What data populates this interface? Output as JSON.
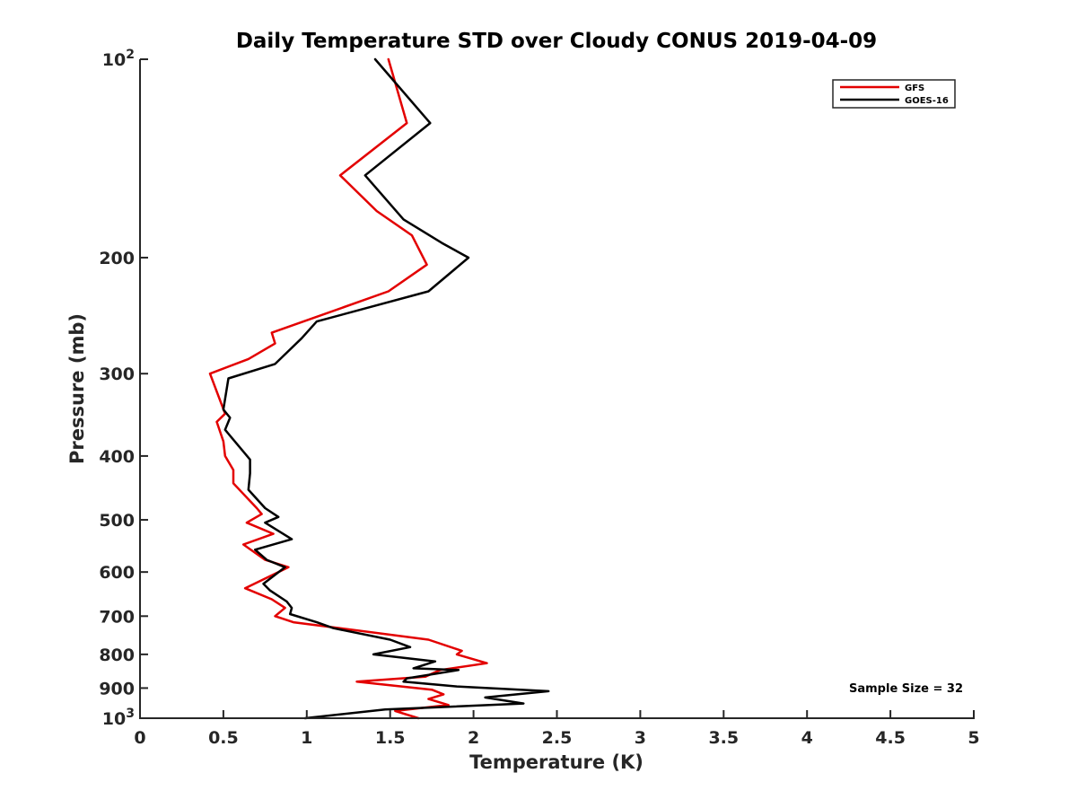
{
  "chart_data": {
    "type": "line",
    "title": "Daily Temperature STD over Cloudy CONUS 2019-04-09",
    "xlabel": "Temperature (K)",
    "ylabel": "Pressure (mb)",
    "xlim": [
      0,
      5
    ],
    "ylim": [
      100,
      1000
    ],
    "y_scale": "log",
    "y_reversed": true,
    "grid": false,
    "x_ticks": [
      0,
      0.5,
      1,
      1.5,
      2,
      2.5,
      3,
      3.5,
      4,
      4.5,
      5
    ],
    "x_tick_labels": [
      "0",
      "0.5",
      "1",
      "1.5",
      "2",
      "2.5",
      "3",
      "3.5",
      "4",
      "4.5",
      "5"
    ],
    "y_ticks": [
      200,
      300,
      400,
      500,
      600,
      700,
      800,
      900
    ],
    "y_tick_labels": [
      "200",
      "300",
      "400",
      "500",
      "600",
      "700",
      "800",
      "900"
    ],
    "y_power_ticks": [
      {
        "value": 100,
        "base": "10",
        "exponent": "2"
      },
      {
        "value": 1000,
        "base": "10",
        "exponent": "3"
      }
    ],
    "legend": {
      "placement": "top-right",
      "entries": [
        "GFS",
        "GOES-16"
      ]
    },
    "annotation": "Sample Size = 32",
    "series": [
      {
        "name": "GFS",
        "color": "#e30000",
        "points": [
          [
            1.49,
            100
          ],
          [
            1.6,
            125
          ],
          [
            1.2,
            150
          ],
          [
            1.42,
            170
          ],
          [
            1.63,
            185
          ],
          [
            1.72,
            205
          ],
          [
            1.49,
            225
          ],
          [
            0.79,
            260
          ],
          [
            0.81,
            270
          ],
          [
            0.65,
            285
          ],
          [
            0.42,
            300
          ],
          [
            0.51,
            345
          ],
          [
            0.46,
            355
          ],
          [
            0.5,
            380
          ],
          [
            0.51,
            400
          ],
          [
            0.56,
            420
          ],
          [
            0.56,
            440
          ],
          [
            0.7,
            480
          ],
          [
            0.73,
            490
          ],
          [
            0.64,
            505
          ],
          [
            0.8,
            525
          ],
          [
            0.62,
            545
          ],
          [
            0.75,
            575
          ],
          [
            0.89,
            590
          ],
          [
            0.63,
            635
          ],
          [
            0.79,
            660
          ],
          [
            0.87,
            680
          ],
          [
            0.81,
            700
          ],
          [
            0.92,
            715
          ],
          [
            1.2,
            730
          ],
          [
            1.73,
            760
          ],
          [
            1.93,
            790
          ],
          [
            1.9,
            800
          ],
          [
            2.08,
            825
          ],
          [
            1.8,
            845
          ],
          [
            1.71,
            865
          ],
          [
            1.3,
            880
          ],
          [
            1.75,
            905
          ],
          [
            1.82,
            920
          ],
          [
            1.73,
            935
          ],
          [
            1.85,
            955
          ],
          [
            1.53,
            975
          ],
          [
            1.67,
            1000
          ]
        ]
      },
      {
        "name": "GOES-16",
        "color": "#000000",
        "points": [
          [
            1.41,
            100
          ],
          [
            1.74,
            125
          ],
          [
            1.35,
            150
          ],
          [
            1.58,
            175
          ],
          [
            1.81,
            190
          ],
          [
            1.97,
            200
          ],
          [
            1.73,
            225
          ],
          [
            1.06,
            250
          ],
          [
            0.97,
            265
          ],
          [
            0.81,
            290
          ],
          [
            0.53,
            305
          ],
          [
            0.5,
            340
          ],
          [
            0.54,
            350
          ],
          [
            0.51,
            365
          ],
          [
            0.66,
            405
          ],
          [
            0.66,
            425
          ],
          [
            0.65,
            450
          ],
          [
            0.75,
            480
          ],
          [
            0.83,
            495
          ],
          [
            0.75,
            505
          ],
          [
            0.91,
            535
          ],
          [
            0.69,
            555
          ],
          [
            0.76,
            575
          ],
          [
            0.87,
            590
          ],
          [
            0.74,
            625
          ],
          [
            0.78,
            640
          ],
          [
            0.88,
            665
          ],
          [
            0.91,
            680
          ],
          [
            0.9,
            695
          ],
          [
            1.06,
            715
          ],
          [
            1.16,
            730
          ],
          [
            1.5,
            760
          ],
          [
            1.62,
            780
          ],
          [
            1.4,
            800
          ],
          [
            1.77,
            820
          ],
          [
            1.64,
            840
          ],
          [
            1.91,
            845
          ],
          [
            1.6,
            870
          ],
          [
            1.58,
            880
          ],
          [
            1.9,
            895
          ],
          [
            2.45,
            910
          ],
          [
            2.07,
            930
          ],
          [
            2.3,
            950
          ],
          [
            1.47,
            970
          ],
          [
            0.99,
            1000
          ]
        ]
      }
    ]
  }
}
